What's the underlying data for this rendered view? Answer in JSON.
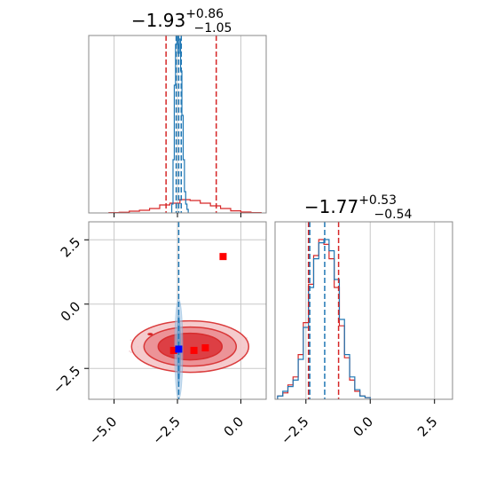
{
  "colors": {
    "primary": "#1f77b4",
    "comparison": "#d62728",
    "marker_red": "#ff0000",
    "marker_blue": "#0000ff",
    "grid": "#c8c8c8",
    "frame": "#888888"
  },
  "chart_data": [
    {
      "type": "histogram",
      "panel": "top-left",
      "title": {
        "main": "−1.93",
        "sup": "+0.86",
        "sub": "−1.05"
      },
      "x_range": [
        -6.0,
        1.0
      ],
      "grid": true,
      "series": [
        {
          "color": "#1f77b4",
          "bins_x": [
            -2.7,
            -2.65,
            -2.6,
            -2.55,
            -2.5,
            -2.45,
            -2.4,
            -2.35,
            -2.3,
            -2.25,
            -2.2,
            -2.15,
            -2.1
          ],
          "density": [
            0.05,
            0.3,
            0.72,
            0.95,
            1.0,
            0.9,
            0.98,
            0.8,
            0.55,
            0.3,
            0.12,
            0.05,
            0.02
          ]
        },
        {
          "color": "#d62728",
          "bins_x": [
            -5.0,
            -4.6,
            -4.2,
            -3.8,
            -3.4,
            -3.0,
            -2.6,
            -2.2,
            -1.8,
            -1.4,
            -1.0,
            -0.6,
            -0.2,
            0.2,
            0.6
          ],
          "density": [
            0.002,
            0.004,
            0.01,
            0.015,
            0.025,
            0.045,
            0.055,
            0.075,
            0.07,
            0.055,
            0.04,
            0.025,
            0.012,
            0.005,
            0.002
          ]
        }
      ],
      "vlines": [
        {
          "x": -2.95,
          "color": "#d62728"
        },
        {
          "x": -2.55,
          "color": "#1f77b4"
        },
        {
          "x": -2.45,
          "color": "#1f77b4"
        },
        {
          "x": -2.35,
          "color": "#1f77b4"
        },
        {
          "x": -0.97,
          "color": "#d62728"
        }
      ]
    },
    {
      "type": "contour",
      "panel": "bottom-left",
      "x_range": [
        -6.0,
        1.0
      ],
      "y_range": [
        -3.7,
        3.2
      ],
      "x_ticks": [
        -5.0,
        -2.5,
        0.0
      ],
      "x_tick_labels": [
        "−5.0",
        "−2.5",
        "0.0"
      ],
      "y_ticks": [
        -2.5,
        0.0,
        2.5
      ],
      "y_tick_labels": [
        "−2.5",
        "0.0",
        "2.5"
      ],
      "grid": true,
      "red_center": [
        -2.0,
        -1.65
      ],
      "blue_center": [
        -2.45,
        -1.75
      ],
      "markers": [
        {
          "x": -0.7,
          "y": 1.85,
          "color": "#ff0000"
        },
        {
          "x": -1.4,
          "y": -1.7,
          "color": "#ff0000"
        },
        {
          "x": -1.85,
          "y": -1.8,
          "color": "#ff0000"
        },
        {
          "x": -2.65,
          "y": -1.8,
          "color": "#ff0000"
        },
        {
          "x": -2.45,
          "y": -1.75,
          "color": "#0000ff"
        }
      ],
      "vlines": [
        {
          "x": -2.45,
          "color": "#1f77b4"
        }
      ],
      "hlines": []
    },
    {
      "type": "histogram",
      "panel": "bottom-right",
      "title": {
        "main": "−1.77",
        "sup": "+0.53",
        "sub": "−0.54"
      },
      "x_range": [
        -3.7,
        3.2
      ],
      "x_ticks": [
        -2.5,
        0.0,
        2.5
      ],
      "x_tick_labels": [
        "−2.5",
        "0.0",
        "2.5"
      ],
      "grid": true,
      "series": [
        {
          "color": "#1f77b4",
          "bins_x": [
            -3.5,
            -3.3,
            -3.1,
            -2.9,
            -2.7,
            -2.5,
            -2.3,
            -2.1,
            -1.9,
            -1.7,
            -1.5,
            -1.3,
            -1.1,
            -0.9,
            -0.7,
            -0.5,
            -0.3,
            -0.1
          ],
          "density": [
            0.02,
            0.05,
            0.08,
            0.12,
            0.25,
            0.45,
            0.7,
            0.88,
            0.98,
            1.0,
            0.93,
            0.75,
            0.5,
            0.28,
            0.14,
            0.06,
            0.02,
            0.01
          ]
        },
        {
          "color": "#d62728",
          "bins_x": [
            -3.5,
            -3.3,
            -3.1,
            -2.9,
            -2.7,
            -2.5,
            -2.3,
            -2.1,
            -1.9,
            -1.7,
            -1.5,
            -1.3,
            -1.1,
            -0.9,
            -0.7,
            -0.5,
            -0.3,
            -0.1
          ],
          "density": [
            0.02,
            0.04,
            0.09,
            0.14,
            0.28,
            0.48,
            0.72,
            0.9,
            1.0,
            0.97,
            0.88,
            0.7,
            0.46,
            0.26,
            0.12,
            0.05,
            0.02,
            0.01
          ]
        }
      ],
      "vlines": [
        {
          "x": -2.4,
          "color": "#d62728"
        },
        {
          "x": -2.35,
          "color": "#1f77b4"
        },
        {
          "x": -1.77,
          "color": "#1f77b4"
        },
        {
          "x": -1.23,
          "color": "#d62728"
        }
      ]
    }
  ]
}
